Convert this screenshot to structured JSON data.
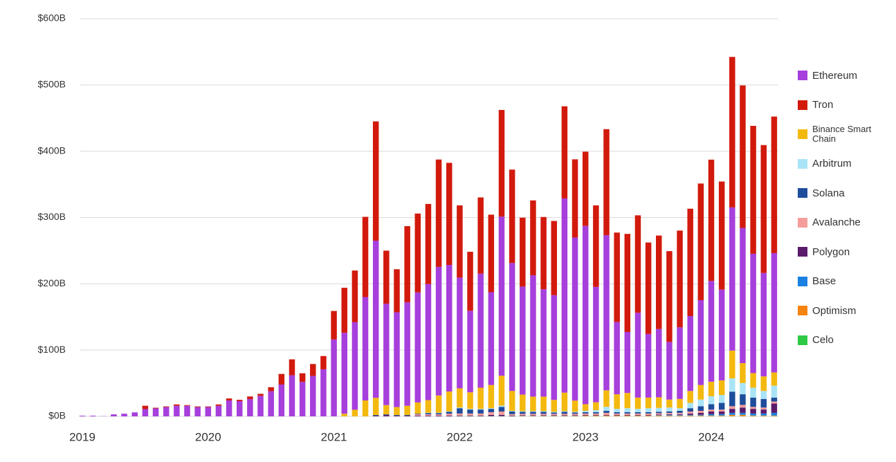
{
  "chart_data": {
    "type": "stacked_bar",
    "categories": [
      "2019",
      null,
      null,
      null,
      null,
      null,
      null,
      null,
      null,
      null,
      null,
      null,
      "2020",
      null,
      null,
      null,
      null,
      null,
      null,
      null,
      null,
      null,
      null,
      null,
      "2021",
      null,
      null,
      null,
      null,
      null,
      null,
      null,
      null,
      null,
      null,
      null,
      "2022",
      null,
      null,
      null,
      null,
      null,
      null,
      null,
      null,
      null,
      null,
      null,
      "2023",
      null,
      null,
      null,
      null,
      null,
      null,
      null,
      null,
      null,
      null,
      null,
      "2024",
      null,
      null,
      null,
      null,
      null,
      null
    ],
    "ylim": [
      0,
      600
    ],
    "yticks": [
      {
        "value": 0,
        "label": "$0B"
      },
      {
        "value": 100,
        "label": "$100B"
      },
      {
        "value": 200,
        "label": "$200B"
      },
      {
        "value": 300,
        "label": "$300B"
      },
      {
        "value": 400,
        "label": "$400B"
      },
      {
        "value": 500,
        "label": "$500B"
      },
      {
        "value": 600,
        "label": "$600B"
      }
    ],
    "grid": true,
    "legend": "right",
    "series": [
      {
        "name": "Ethereum",
        "color": "#a63fdc",
        "values": [
          1,
          1,
          0.3,
          3,
          4,
          6,
          11,
          12,
          14,
          16,
          16,
          14,
          14,
          16,
          24,
          23,
          26,
          31,
          38,
          48,
          62,
          52,
          61,
          71,
          116,
          122,
          132,
          156,
          237,
          153,
          143,
          156,
          166,
          175,
          194,
          191,
          167,
          123,
          172,
          140,
          240,
          193,
          163,
          183,
          162,
          158,
          293,
          246,
          269,
          174,
          234,
          109,
          92,
          128,
          96,
          103,
          87,
          108,
          113,
          128,
          152,
          137,
          216,
          204,
          180,
          156,
          180
        ]
      },
      {
        "name": "Tron",
        "color": "#d21a0c",
        "values": [
          0,
          0,
          0,
          0,
          0,
          0,
          5,
          1,
          1,
          2,
          1,
          1,
          1,
          2,
          3,
          2,
          4,
          3,
          6,
          16,
          24,
          13,
          18,
          20,
          43,
          68,
          78,
          121,
          180,
          80,
          65,
          115,
          119,
          121,
          162,
          154,
          109,
          89,
          115,
          117,
          161,
          141,
          104,
          113,
          109,
          112,
          139,
          118,
          112,
          123,
          160,
          135,
          148,
          147,
          138,
          141,
          137,
          146,
          162,
          176,
          183,
          163,
          227,
          215,
          193,
          193,
          206
        ]
      },
      {
        "name": "Binance Smart Chain",
        "color": "#f4b90f",
        "values": [
          0,
          0,
          0,
          0,
          0,
          0,
          0,
          0,
          0,
          0,
          0,
          0,
          0,
          0,
          0,
          0,
          0,
          0,
          0,
          0,
          0,
          0,
          0,
          0,
          0,
          4,
          10,
          24,
          26,
          14,
          12,
          14,
          17,
          19,
          26,
          30,
          29,
          25,
          32,
          35,
          45,
          30,
          25,
          22,
          22,
          18,
          28,
          17,
          10,
          12,
          25,
          22,
          23,
          17,
          16,
          16,
          12,
          14,
          18,
          22,
          22,
          22,
          42,
          30,
          22,
          22,
          20
        ]
      },
      {
        "name": "Arbitrum",
        "color": "#a9e4f6",
        "values": [
          0,
          0,
          0,
          0,
          0,
          0,
          0,
          0,
          0,
          0,
          0,
          0,
          0,
          0,
          0,
          0,
          0,
          0,
          0,
          0,
          0,
          0,
          0,
          0,
          0,
          0,
          0,
          0,
          0,
          0,
          0,
          0,
          0,
          0.5,
          0.5,
          0.5,
          1,
          1,
          1,
          1,
          2,
          1,
          1,
          1,
          1,
          1,
          1,
          1,
          2,
          3,
          6,
          5,
          6,
          5,
          6,
          6,
          6,
          4,
          8,
          10,
          12,
          12,
          20,
          17,
          15,
          12,
          18
        ]
      },
      {
        "name": "Solana",
        "color": "#1e4d9b",
        "values": [
          0,
          0,
          0,
          0,
          0,
          0,
          0,
          0,
          0,
          0,
          0,
          0,
          0,
          0,
          0,
          0,
          0,
          0,
          0,
          0,
          0,
          0,
          0,
          0,
          0,
          0,
          0,
          0,
          1,
          1,
          1,
          1,
          1,
          2,
          2,
          3,
          8,
          6,
          6,
          5,
          7,
          4,
          3,
          3,
          3,
          2,
          3,
          2,
          2,
          2,
          3,
          2,
          2,
          2,
          2,
          2,
          2,
          3,
          5,
          7,
          8,
          10,
          22,
          16,
          14,
          13,
          6
        ]
      },
      {
        "name": "Avalanche",
        "color": "#f59c9c",
        "values": [
          0,
          0,
          0,
          0,
          0,
          0,
          0,
          0,
          0,
          0,
          0,
          0,
          0,
          0,
          0,
          0,
          0,
          0,
          0,
          0,
          0,
          0,
          0,
          0,
          0,
          0,
          0,
          0,
          0,
          0,
          0,
          0,
          2,
          2,
          2,
          3,
          3,
          3,
          3,
          4,
          5,
          2,
          2,
          2,
          2,
          2,
          2,
          2,
          2,
          2,
          3,
          2,
          2,
          2,
          2,
          2,
          2,
          2,
          3,
          3,
          3,
          3,
          4,
          4,
          3,
          3,
          3
        ]
      },
      {
        "name": "Polygon",
        "color": "#5b1b6c",
        "values": [
          0,
          0,
          0,
          0,
          0,
          0,
          0,
          0,
          0,
          0,
          0,
          0,
          0,
          0,
          0,
          0,
          0,
          0,
          0,
          0,
          0,
          0,
          0,
          0,
          0,
          0,
          0,
          0,
          1,
          2,
          1,
          1,
          1,
          1,
          1,
          1,
          1,
          1,
          1,
          2,
          2,
          1,
          1,
          1,
          1,
          1,
          1,
          1,
          1,
          1,
          1,
          1,
          1,
          1,
          1,
          1,
          1,
          1,
          2,
          3,
          4,
          4,
          6,
          8,
          7,
          6,
          14
        ]
      },
      {
        "name": "Base",
        "color": "#1a80e2",
        "values": [
          0,
          0,
          0,
          0,
          0,
          0,
          0,
          0,
          0,
          0,
          0,
          0,
          0,
          0,
          0,
          0,
          0,
          0,
          0,
          0,
          0,
          0,
          0,
          0,
          0,
          0,
          0,
          0,
          0,
          0,
          0,
          0,
          0,
          0,
          0,
          0,
          0,
          0,
          0,
          0,
          0,
          0,
          0,
          0,
          0,
          0,
          0,
          0,
          0,
          0,
          0,
          0,
          0,
          0,
          0,
          0.5,
          1,
          1,
          1,
          1,
          2,
          2,
          3,
          3,
          3,
          3,
          4
        ]
      },
      {
        "name": "Optimism",
        "color": "#f5830f",
        "values": [
          0,
          0,
          0,
          0,
          0,
          0,
          0,
          0,
          0,
          0,
          0,
          0,
          0,
          0,
          0,
          0,
          0,
          0,
          0,
          0,
          0,
          0,
          0,
          0,
          0,
          0,
          0,
          0,
          0,
          0,
          0,
          0,
          0,
          0,
          0,
          0,
          0,
          0,
          0,
          0,
          0,
          0,
          0.5,
          0.5,
          0.5,
          0.5,
          0.5,
          0.5,
          1,
          1,
          1,
          1,
          1,
          1,
          1,
          1,
          1,
          1,
          1,
          1,
          1,
          1,
          2,
          2,
          1,
          1,
          1
        ]
      },
      {
        "name": "Celo",
        "color": "#2fca45",
        "values": [
          0,
          0,
          0,
          0,
          0,
          0,
          0,
          0,
          0,
          0,
          0,
          0,
          0,
          0,
          0,
          0,
          0,
          0,
          0,
          0,
          0,
          0,
          0,
          0,
          0,
          0,
          0,
          0,
          0,
          0,
          0,
          0,
          0,
          0,
          0,
          0,
          0.3,
          0.3,
          0.3,
          0.3,
          0.3,
          0.3,
          0.3,
          0.3,
          0.3,
          0.3,
          0.3,
          0.3,
          0.3,
          0.3,
          0.3,
          0.3,
          0.3,
          0.3,
          0.3,
          0.3,
          0.3,
          0.3,
          0.3,
          0.3,
          0.3,
          0.3,
          0.3,
          0.3,
          0.3,
          0.3,
          0.3
        ]
      }
    ]
  }
}
